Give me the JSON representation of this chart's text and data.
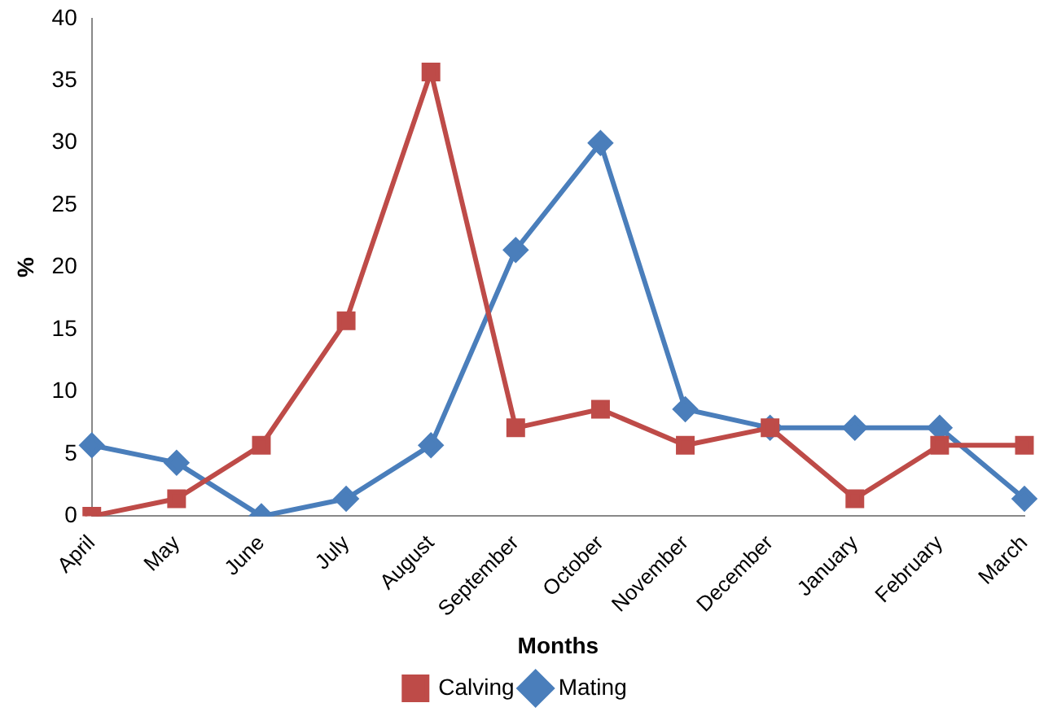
{
  "chart_data": {
    "type": "line",
    "xlabel": "Months",
    "ylabel": "%",
    "categories": [
      "April",
      "May",
      "June",
      "July",
      "August",
      "September",
      "October",
      "November",
      "December",
      "January",
      "February",
      "March"
    ],
    "series": [
      {
        "name": "Mating",
        "color": "#4a7ebb",
        "marker": "diamond",
        "values": [
          5.7,
          4.3,
          0,
          1.4,
          5.7,
          21.4,
          30,
          8.6,
          7.1,
          7.1,
          7.1,
          1.4
        ]
      },
      {
        "name": "Calving",
        "color": "#be4b48",
        "marker": "square",
        "values": [
          0,
          1.4,
          5.7,
          15.7,
          35.7,
          7.1,
          8.6,
          5.7,
          7.1,
          1.4,
          5.7,
          5.7
        ]
      }
    ],
    "ylim": [
      0,
      40
    ],
    "yticks": [
      0,
      5,
      10,
      15,
      20,
      25,
      30,
      35,
      40
    ],
    "grid": false,
    "legend": "bottom"
  }
}
